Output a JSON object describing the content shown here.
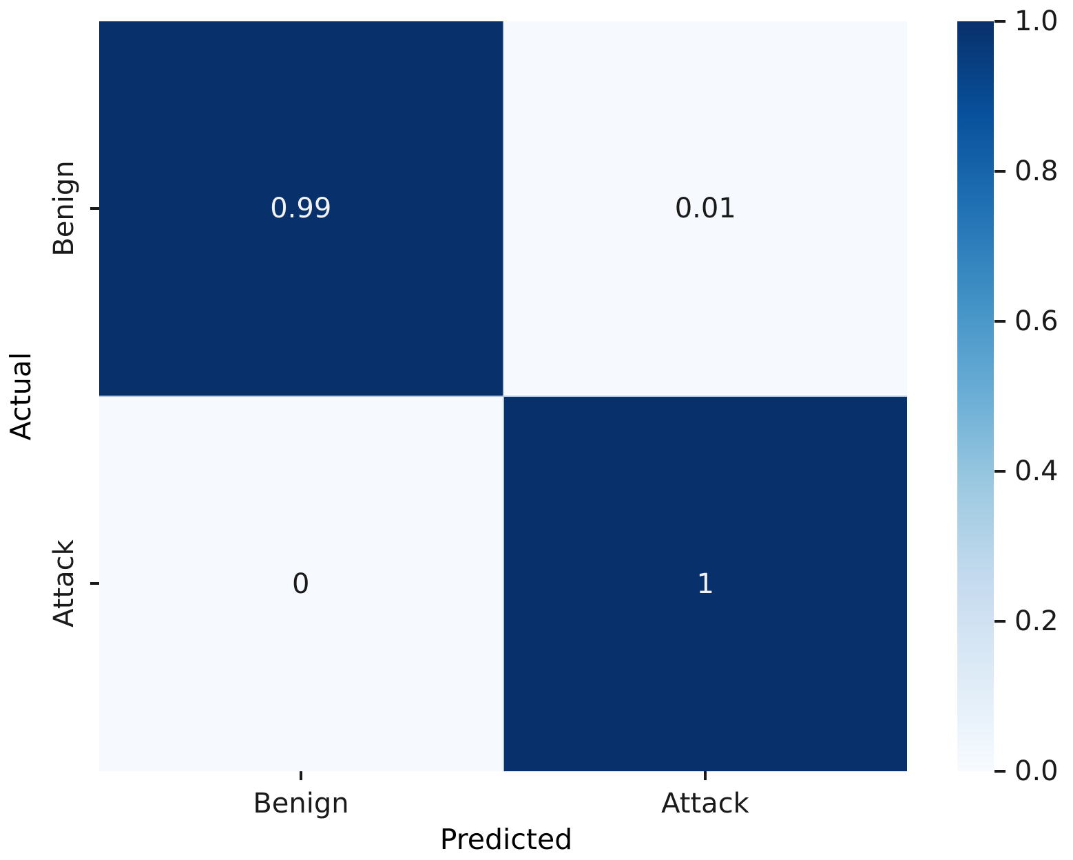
{
  "chart_data": {
    "type": "heatmap",
    "subtype": "confusion-matrix",
    "title": "",
    "xlabel": "Predicted",
    "ylabel": "Actual",
    "x_categories": [
      "Benign",
      "Attack"
    ],
    "y_categories": [
      "Benign",
      "Attack"
    ],
    "values": [
      [
        0.99,
        0.01
      ],
      [
        0,
        1
      ]
    ],
    "cell_labels": [
      [
        "0.99",
        "0.01"
      ],
      [
        "0",
        "1"
      ]
    ],
    "colormap": "Blues",
    "value_range": [
      0.0,
      1.0
    ],
    "grid": false,
    "legend": false,
    "colorbar": {
      "position": "right",
      "min": 0.0,
      "max": 1.0,
      "tick_labels": [
        "1.0",
        "0.8",
        "0.6",
        "0.4",
        "0.2",
        "0.0"
      ]
    },
    "colors": {
      "cell_high": "#08306b",
      "cell_low": "#f6fafe",
      "annotation_on_dark": "#f2f2f2",
      "annotation_on_light": "#1a1a1a",
      "tick_text": "#1a1a1a",
      "background": "#ffffff"
    }
  }
}
